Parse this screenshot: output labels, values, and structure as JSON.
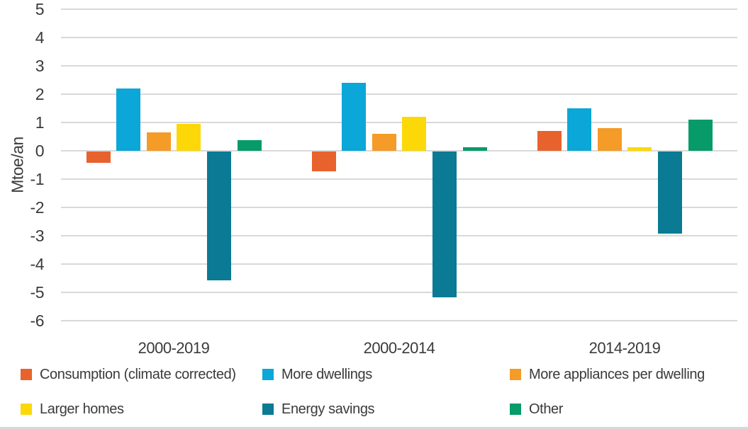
{
  "chart_data": {
    "type": "bar",
    "title": "",
    "xlabel": "",
    "ylabel": "Mtoe/an",
    "categories": [
      "2000-2019",
      "2000-2014",
      "2014-2019"
    ],
    "series": [
      {
        "name": "Consumption (climate corrected)",
        "color": "#E8622D",
        "values": [
          -0.4,
          -0.7,
          0.7
        ]
      },
      {
        "name": "More dwellings",
        "color": "#0AA7D8",
        "values": [
          2.2,
          2.4,
          1.5
        ]
      },
      {
        "name": "More appliances per dwelling",
        "color": "#F49B28",
        "values": [
          0.65,
          0.6,
          0.8
        ]
      },
      {
        "name": "Larger homes",
        "color": "#FDD808",
        "values": [
          0.95,
          1.2,
          0.12
        ]
      },
      {
        "name": "Energy savings",
        "color": "#0B7A94",
        "values": [
          -4.55,
          -5.15,
          -2.9
        ]
      },
      {
        "name": "Other",
        "color": "#069B69",
        "values": [
          0.37,
          0.12,
          1.1
        ]
      }
    ],
    "ylim": [
      -6,
      5
    ],
    "ytick_step": 1,
    "grid": true,
    "gridline_color": "#D9D9D9",
    "text_color": "#3A3A3A",
    "legend_position": "bottom"
  }
}
